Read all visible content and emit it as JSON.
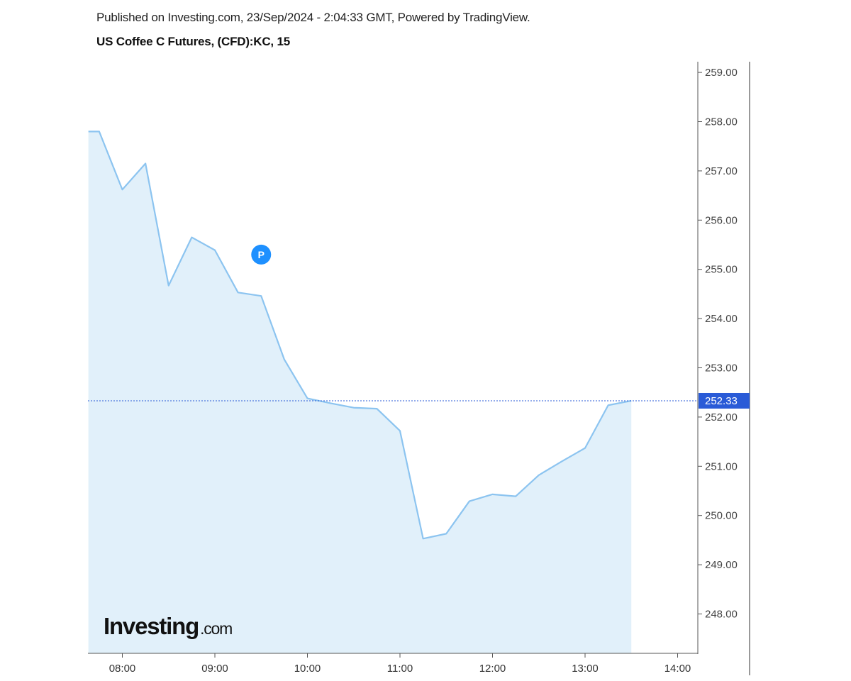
{
  "header": {
    "published": "Published on Investing.com, 23/Sep/2024 - 2:04:33 GMT, Powered by TradingView.",
    "title": "US Coffee C Futures, (CFD):KC, 15"
  },
  "watermark": {
    "brand": "Investing",
    "suffix": ".com"
  },
  "marker": {
    "label": "P",
    "x": "09:30",
    "y": 255.3,
    "color": "#1e90ff"
  },
  "colors": {
    "line": "#8cc4f0",
    "area": "#e1f0fa",
    "price_line": "#2a5bd7",
    "price_badge": "#2a5bd7",
    "axis": "#555555"
  },
  "chart_data": {
    "type": "area",
    "interval": "15",
    "x": [
      "07:45",
      "08:00",
      "08:15",
      "08:30",
      "08:45",
      "09:00",
      "09:15",
      "09:30",
      "09:45",
      "10:00",
      "10:15",
      "10:30",
      "10:45",
      "11:00",
      "11:15",
      "11:30",
      "11:45",
      "12:00",
      "12:15",
      "12:30",
      "12:45",
      "13:00",
      "13:15",
      "13:30"
    ],
    "series": [
      {
        "values": [
          257.8,
          256.62,
          257.15,
          254.67,
          255.65,
          255.39,
          254.53,
          254.46,
          253.17,
          252.38,
          252.28,
          252.19,
          252.17,
          251.72,
          249.53,
          249.63,
          250.29,
          250.43,
          250.39,
          250.82,
          251.1,
          251.37,
          252.24,
          252.33
        ]
      }
    ],
    "first_x_value": 257.8,
    "first_x_time": "07:38",
    "last_price": "252.33",
    "last_price_value": 252.33,
    "xticks": [
      "08:00",
      "09:00",
      "10:00",
      "11:00",
      "12:00",
      "13:00",
      "14:00"
    ],
    "yticks": [
      "248.00",
      "249.00",
      "250.00",
      "251.00",
      "252.00",
      "253.00",
      "254.00",
      "255.00",
      "256.00",
      "257.00",
      "258.00",
      "259.00"
    ],
    "ylim": [
      247.2,
      259.25
    ],
    "xlim": [
      "07:38",
      "14:12"
    ],
    "grid": false,
    "legend": "none"
  }
}
